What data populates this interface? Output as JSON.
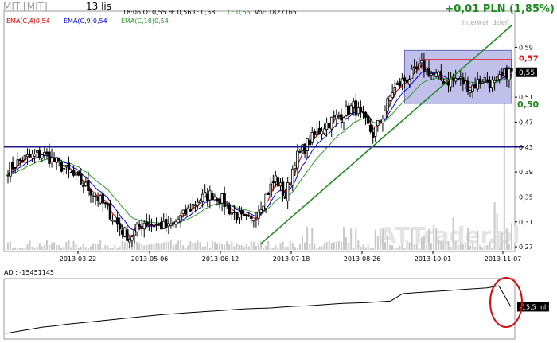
{
  "header": {
    "ticker": "MIT [MIT]",
    "date": "13 lis",
    "ohlc": "18:06  O: 0,55  H: 0,56  L: 0,53",
    "close": "C: 0,55",
    "volume": "Vol: 1827165",
    "change": "+0,01 PLN (1,85%)",
    "interval": "Interwał: dzień"
  },
  "watermark": "ATTrader.pl",
  "colors": {
    "candle": "#000000",
    "ema4": "#d40000",
    "ema9": "#0000d8",
    "ema18": "#2a9a2a",
    "support_line": "#1c1c8c",
    "trend_line": "#1f8a1f",
    "resistance_line": "#e01010",
    "range_box": "#8c8cd8",
    "volume": "#c8c8c8",
    "change_text": "#1f8a1f",
    "annotation_circle": "#d01010"
  },
  "chart_data": [
    {
      "type": "candlestick",
      "title": "MIT [MIT]",
      "ylim": [
        0.265,
        0.625
      ],
      "y_ticks": [
        "0,59",
        "0,55",
        "0,51",
        "0,47",
        "0,43",
        "0,39",
        "0,35",
        "0,31",
        "0,27"
      ],
      "x_ticks": [
        "2013-03-22",
        "2013-05-06",
        "2013-06-12",
        "2013-07-18",
        "2013-08-26",
        "2013-10-01",
        "2013-11-07"
      ],
      "legend": [
        "EMA(C,4)0,54",
        "EMA(C,9)0,54",
        "EMA(C,18)0,54"
      ],
      "price_path_points": [
        {
          "x": 0,
          "y": 0.395
        },
        {
          "x": 6,
          "y": 0.41
        },
        {
          "x": 14,
          "y": 0.42
        },
        {
          "x": 20,
          "y": 0.405
        },
        {
          "x": 28,
          "y": 0.38
        },
        {
          "x": 34,
          "y": 0.36
        },
        {
          "x": 40,
          "y": 0.335
        },
        {
          "x": 46,
          "y": 0.3
        },
        {
          "x": 50,
          "y": 0.285
        },
        {
          "x": 56,
          "y": 0.31
        },
        {
          "x": 62,
          "y": 0.305
        },
        {
          "x": 66,
          "y": 0.3
        },
        {
          "x": 72,
          "y": 0.32
        },
        {
          "x": 78,
          "y": 0.345
        },
        {
          "x": 84,
          "y": 0.355
        },
        {
          "x": 88,
          "y": 0.345
        },
        {
          "x": 92,
          "y": 0.325
        },
        {
          "x": 96,
          "y": 0.315
        },
        {
          "x": 100,
          "y": 0.31
        },
        {
          "x": 105,
          "y": 0.345
        },
        {
          "x": 110,
          "y": 0.38
        },
        {
          "x": 114,
          "y": 0.35
        },
        {
          "x": 118,
          "y": 0.41
        },
        {
          "x": 124,
          "y": 0.44
        },
        {
          "x": 130,
          "y": 0.465
        },
        {
          "x": 136,
          "y": 0.48
        },
        {
          "x": 142,
          "y": 0.495
        },
        {
          "x": 146,
          "y": 0.475
        },
        {
          "x": 150,
          "y": 0.45
        },
        {
          "x": 154,
          "y": 0.48
        },
        {
          "x": 158,
          "y": 0.52
        },
        {
          "x": 162,
          "y": 0.535
        },
        {
          "x": 166,
          "y": 0.545
        },
        {
          "x": 170,
          "y": 0.56
        },
        {
          "x": 175,
          "y": 0.545
        },
        {
          "x": 180,
          "y": 0.535
        },
        {
          "x": 185,
          "y": 0.54
        },
        {
          "x": 190,
          "y": 0.525
        },
        {
          "x": 195,
          "y": 0.54
        },
        {
          "x": 200,
          "y": 0.53
        },
        {
          "x": 205,
          "y": 0.55
        }
      ],
      "overlays": {
        "support_level": 0.43,
        "resistance_level": 0.57,
        "trend_line": [
          {
            "x": 104,
            "y": 0.275
          },
          {
            "x": 207,
            "y": 0.625
          }
        ],
        "range_box": {
          "x_from": 163,
          "x_to": 207,
          "y_from": 0.5,
          "y_to": 0.585
        }
      },
      "labels": {
        "resistance": "0,57",
        "last": "0,55",
        "support": "0,50"
      }
    },
    {
      "type": "line",
      "title": "AD : -15451145",
      "last_value_label": "-15,5 mln",
      "values": [
        -22.0,
        -21.5,
        -21.0,
        -20.5,
        -20.2,
        -19.8,
        -19.5,
        -19.2,
        -18.9,
        -18.6,
        -18.3,
        -18.0,
        -17.7,
        -17.4,
        -17.2,
        -17.0,
        -16.8,
        -16.6,
        -16.4,
        -16.2,
        -16.0,
        -15.9,
        -15.8,
        -15.6,
        -15.4,
        -15.3,
        -15.1,
        -14.9,
        -14.7,
        -14.6,
        -14.5,
        -14.3,
        -14.1,
        -12.3,
        -12.1,
        -11.9,
        -11.7,
        -11.5,
        -11.3,
        -11.1,
        -10.9,
        -10.4,
        -15.5
      ]
    }
  ]
}
